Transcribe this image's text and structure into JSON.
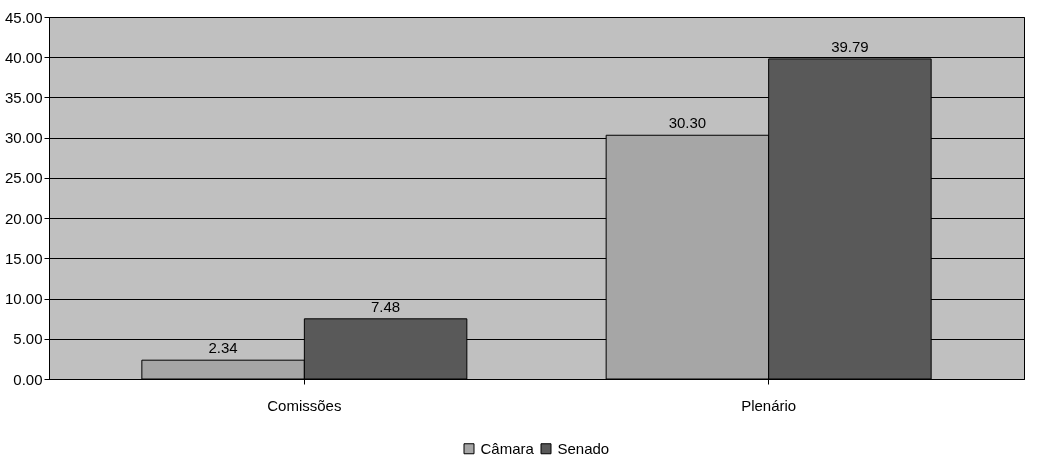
{
  "chart_data": {
    "type": "bar",
    "categories": [
      "Comissões",
      "Plenário"
    ],
    "series": [
      {
        "name": "Câmara",
        "color": "#a6a6a6",
        "values": [
          2.34,
          30.3
        ],
        "value_labels": [
          "2.34",
          "30.30"
        ]
      },
      {
        "name": "Senado",
        "color": "#595959",
        "values": [
          7.48,
          39.79
        ],
        "value_labels": [
          "7.48",
          "39.79"
        ]
      }
    ],
    "ylim": [
      0,
      45
    ],
    "yticks": [
      {
        "value": 0,
        "label": "0.00"
      },
      {
        "value": 5,
        "label": "5.00"
      },
      {
        "value": 10,
        "label": "10.00"
      },
      {
        "value": 15,
        "label": "15.00"
      },
      {
        "value": 20,
        "label": "20.00"
      },
      {
        "value": 25,
        "label": "25.00"
      },
      {
        "value": 30,
        "label": "30.00"
      },
      {
        "value": 35,
        "label": "35.00"
      },
      {
        "value": 40,
        "label": "40.00"
      },
      {
        "value": 45,
        "label": "45.00"
      }
    ],
    "grid": "y",
    "legend": "bottom"
  }
}
